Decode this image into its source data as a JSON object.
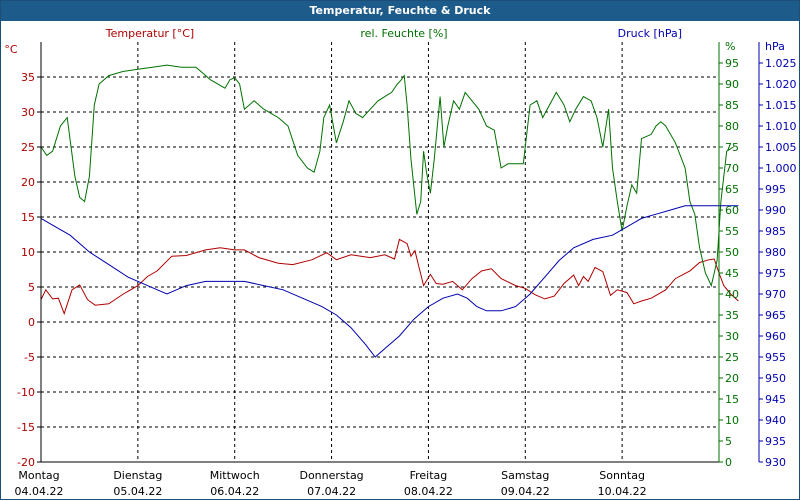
{
  "window": {
    "title": "Temperatur, Feuchte & Druck"
  },
  "chart_data": {
    "type": "line",
    "title": "Temperatur, Feuchte & Druck",
    "colors": {
      "temperature": "#b00000",
      "humidity": "#007000",
      "pressure": "#0000b0",
      "grid": "#000000"
    },
    "grid": true,
    "x_days": [
      {
        "day": "Montag",
        "date": "04.04.22"
      },
      {
        "day": "Dienstag",
        "date": "05.04.22"
      },
      {
        "day": "Mittwoch",
        "date": "06.04.22"
      },
      {
        "day": "Donnerstag",
        "date": "07.04.22"
      },
      {
        "day": "Freitag",
        "date": "08.04.22"
      },
      {
        "day": "Samstag",
        "date": "09.04.22"
      },
      {
        "day": "Sonntag",
        "date": "10.04.22"
      }
    ],
    "x_range_days": [
      0,
      7
    ],
    "axes": {
      "temperature": {
        "label": "Temperatur [°C]",
        "unit": "°C",
        "range": [
          -20,
          40
        ],
        "ticks": [
          "-20",
          "-15",
          "-10",
          "-5",
          "0",
          "5",
          "10",
          "15",
          "20",
          "25",
          "30",
          "35"
        ]
      },
      "humidity": {
        "label": "rel. Feuchte [%]",
        "unit": "%",
        "range": [
          0,
          100
        ],
        "ticks": [
          "0",
          "5",
          "10",
          "15",
          "20",
          "25",
          "30",
          "35",
          "40",
          "45",
          "50",
          "55",
          "60",
          "65",
          "70",
          "75",
          "80",
          "85",
          "90",
          "95"
        ]
      },
      "pressure": {
        "label": "Druck [hPa]",
        "unit": "hPa",
        "range": [
          930,
          1030
        ],
        "ticks": [
          "930",
          "935",
          "940",
          "945",
          "950",
          "955",
          "960",
          "965",
          "970",
          "975",
          "980",
          "985",
          "990",
          "995",
          "1.000",
          "1.005",
          "1.010",
          "1.015",
          "1.020",
          "1.025"
        ]
      }
    },
    "series": [
      {
        "name": "Temperatur [°C]",
        "axis": "temperature",
        "color": "#b00000",
        "points": [
          [
            0,
            3.2
          ],
          [
            0.05,
            4.6
          ],
          [
            0.12,
            3.3
          ],
          [
            0.18,
            3.4
          ],
          [
            0.24,
            1.2
          ],
          [
            0.32,
            4.6
          ],
          [
            0.4,
            5.3
          ],
          [
            0.48,
            3.2
          ],
          [
            0.56,
            2.4
          ],
          [
            0.7,
            2.6
          ],
          [
            0.85,
            4.0
          ],
          [
            1.0,
            5.2
          ],
          [
            1.1,
            6.5
          ],
          [
            1.2,
            7.3
          ],
          [
            1.35,
            9.4
          ],
          [
            1.5,
            9.5
          ],
          [
            1.7,
            10.3
          ],
          [
            1.85,
            10.6
          ],
          [
            2.0,
            10.3
          ],
          [
            2.1,
            10.3
          ],
          [
            2.25,
            9.2
          ],
          [
            2.45,
            8.4
          ],
          [
            2.6,
            8.2
          ],
          [
            2.8,
            8.9
          ],
          [
            2.95,
            9.9
          ],
          [
            3.05,
            8.9
          ],
          [
            3.2,
            9.6
          ],
          [
            3.4,
            9.2
          ],
          [
            3.55,
            9.6
          ],
          [
            3.65,
            9.0
          ],
          [
            3.7,
            11.8
          ],
          [
            3.78,
            11.2
          ],
          [
            3.82,
            9.4
          ],
          [
            3.86,
            10.2
          ],
          [
            3.9,
            8.0
          ],
          [
            3.95,
            5.2
          ],
          [
            4.02,
            6.8
          ],
          [
            4.08,
            5.5
          ],
          [
            4.15,
            5.4
          ],
          [
            4.25,
            5.8
          ],
          [
            4.35,
            4.6
          ],
          [
            4.45,
            6.2
          ],
          [
            4.55,
            7.3
          ],
          [
            4.65,
            7.6
          ],
          [
            4.75,
            6.2
          ],
          [
            4.9,
            5.2
          ],
          [
            5.0,
            4.8
          ],
          [
            5.1,
            3.9
          ],
          [
            5.2,
            3.3
          ],
          [
            5.3,
            3.7
          ],
          [
            5.4,
            5.5
          ],
          [
            5.5,
            6.7
          ],
          [
            5.55,
            5.2
          ],
          [
            5.6,
            6.5
          ],
          [
            5.65,
            5.8
          ],
          [
            5.72,
            7.8
          ],
          [
            5.8,
            7.2
          ],
          [
            5.88,
            3.8
          ],
          [
            5.95,
            4.6
          ],
          [
            6.05,
            4.2
          ],
          [
            6.12,
            2.6
          ],
          [
            6.2,
            3.0
          ],
          [
            6.3,
            3.4
          ],
          [
            6.45,
            4.6
          ],
          [
            6.55,
            6.2
          ],
          [
            6.7,
            7.3
          ],
          [
            6.8,
            8.5
          ],
          [
            6.9,
            8.9
          ],
          [
            6.95,
            9.0
          ],
          [
            7.0,
            7.0
          ],
          [
            7.05,
            5.2
          ],
          [
            7.12,
            4.0
          ],
          [
            7.2,
            3.0
          ]
        ]
      },
      {
        "name": "rel. Feuchte [%]",
        "axis": "humidity",
        "color": "#007000",
        "points": [
          [
            0,
            75
          ],
          [
            0.06,
            73
          ],
          [
            0.12,
            74
          ],
          [
            0.2,
            80
          ],
          [
            0.27,
            82
          ],
          [
            0.35,
            68
          ],
          [
            0.4,
            63
          ],
          [
            0.45,
            62
          ],
          [
            0.5,
            68
          ],
          [
            0.55,
            85
          ],
          [
            0.6,
            90
          ],
          [
            0.7,
            92
          ],
          [
            0.85,
            93
          ],
          [
            1.0,
            93.5
          ],
          [
            1.15,
            94
          ],
          [
            1.3,
            94.5
          ],
          [
            1.45,
            94
          ],
          [
            1.6,
            94
          ],
          [
            1.75,
            91
          ],
          [
            1.9,
            89
          ],
          [
            1.95,
            91
          ],
          [
            2.0,
            91.5
          ],
          [
            2.05,
            90
          ],
          [
            2.1,
            84
          ],
          [
            2.2,
            86
          ],
          [
            2.3,
            84
          ],
          [
            2.45,
            82
          ],
          [
            2.55,
            80
          ],
          [
            2.65,
            73
          ],
          [
            2.75,
            70
          ],
          [
            2.82,
            69
          ],
          [
            2.88,
            74
          ],
          [
            2.92,
            82
          ],
          [
            2.98,
            85
          ],
          [
            3.05,
            76
          ],
          [
            3.12,
            81
          ],
          [
            3.18,
            86
          ],
          [
            3.25,
            83
          ],
          [
            3.32,
            82
          ],
          [
            3.4,
            84
          ],
          [
            3.48,
            86
          ],
          [
            3.55,
            87
          ],
          [
            3.62,
            88
          ],
          [
            3.68,
            90
          ],
          [
            3.72,
            91
          ],
          [
            3.75,
            92
          ],
          [
            3.78,
            85
          ],
          [
            3.82,
            72
          ],
          [
            3.88,
            59
          ],
          [
            3.92,
            62
          ],
          [
            3.95,
            74
          ],
          [
            3.98,
            69
          ],
          [
            4.02,
            64
          ],
          [
            4.06,
            72
          ],
          [
            4.12,
            87
          ],
          [
            4.16,
            75
          ],
          [
            4.2,
            80
          ],
          [
            4.26,
            86
          ],
          [
            4.32,
            84
          ],
          [
            4.38,
            88
          ],
          [
            4.45,
            86
          ],
          [
            4.52,
            84
          ],
          [
            4.6,
            80
          ],
          [
            4.68,
            79
          ],
          [
            4.75,
            70
          ],
          [
            4.82,
            71
          ],
          [
            4.9,
            71
          ],
          [
            4.98,
            71
          ],
          [
            5.05,
            85
          ],
          [
            5.12,
            86
          ],
          [
            5.18,
            82
          ],
          [
            5.25,
            85
          ],
          [
            5.32,
            88
          ],
          [
            5.4,
            85
          ],
          [
            5.46,
            81
          ],
          [
            5.52,
            84
          ],
          [
            5.6,
            87
          ],
          [
            5.68,
            86
          ],
          [
            5.74,
            82
          ],
          [
            5.8,
            75
          ],
          [
            5.86,
            84
          ],
          [
            5.9,
            70
          ],
          [
            5.95,
            62
          ],
          [
            6.0,
            55
          ],
          [
            6.05,
            61
          ],
          [
            6.1,
            66
          ],
          [
            6.15,
            64
          ],
          [
            6.2,
            77
          ],
          [
            6.3,
            78
          ],
          [
            6.35,
            80
          ],
          [
            6.4,
            81
          ],
          [
            6.45,
            80
          ],
          [
            6.55,
            76
          ],
          [
            6.65,
            70
          ],
          [
            6.7,
            62
          ],
          [
            6.75,
            59
          ],
          [
            6.8,
            51
          ],
          [
            6.86,
            45
          ],
          [
            6.92,
            42
          ],
          [
            6.98,
            48
          ],
          [
            7.02,
            62
          ],
          [
            7.08,
            74
          ],
          [
            7.15,
            75
          ]
        ]
      },
      {
        "name": "Druck [hPa]",
        "axis": "pressure",
        "color": "#0000b0",
        "points": [
          [
            0,
            988
          ],
          [
            0.15,
            986
          ],
          [
            0.3,
            984
          ],
          [
            0.5,
            980
          ],
          [
            0.7,
            977
          ],
          [
            0.9,
            974
          ],
          [
            1.1,
            972
          ],
          [
            1.3,
            970
          ],
          [
            1.5,
            972
          ],
          [
            1.7,
            973
          ],
          [
            1.9,
            973
          ],
          [
            2.1,
            973
          ],
          [
            2.3,
            972
          ],
          [
            2.5,
            971
          ],
          [
            2.7,
            969
          ],
          [
            2.9,
            967
          ],
          [
            3.05,
            965
          ],
          [
            3.2,
            962
          ],
          [
            3.35,
            958
          ],
          [
            3.45,
            955
          ],
          [
            3.55,
            957
          ],
          [
            3.7,
            960
          ],
          [
            3.85,
            964
          ],
          [
            4.0,
            967
          ],
          [
            4.15,
            969
          ],
          [
            4.3,
            970
          ],
          [
            4.4,
            969
          ],
          [
            4.5,
            967
          ],
          [
            4.6,
            966
          ],
          [
            4.75,
            966
          ],
          [
            4.9,
            967
          ],
          [
            5.05,
            970
          ],
          [
            5.2,
            974
          ],
          [
            5.35,
            978
          ],
          [
            5.5,
            981
          ],
          [
            5.7,
            983
          ],
          [
            5.9,
            984
          ],
          [
            6.05,
            986
          ],
          [
            6.2,
            988
          ],
          [
            6.35,
            989
          ],
          [
            6.5,
            990
          ],
          [
            6.65,
            991
          ],
          [
            6.8,
            991
          ],
          [
            6.95,
            991
          ],
          [
            7.05,
            991
          ],
          [
            7.2,
            991
          ]
        ]
      }
    ]
  }
}
